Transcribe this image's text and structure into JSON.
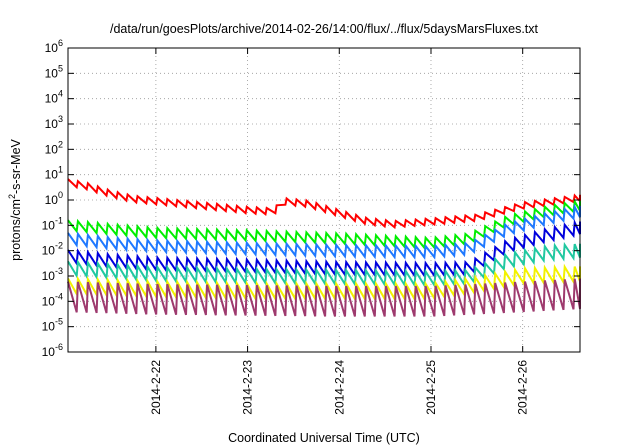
{
  "chart_data": {
    "type": "line",
    "title": "/data/run/goesPlots/archive/2014-02-26/14:00/flux/../flux/5daysMarsFluxes.txt",
    "xlabel": "Coordinated Universal Time (UTC)",
    "ylabel_parts": [
      "protons/cm",
      "2",
      "-s-sr-MeV"
    ],
    "y_scale": "log",
    "ylim": [
      1e-06,
      1000000.0
    ],
    "x_range_days": [
      "2014-02-21 01:00",
      "2014-02-26 15:00"
    ],
    "grid": true,
    "legend": "none",
    "x_ticks": [
      {
        "label": "2014-2-22",
        "date": "2014-02-22"
      },
      {
        "label": "2014-2-23",
        "date": "2014-02-23"
      },
      {
        "label": "2014-2-24",
        "date": "2014-02-24"
      },
      {
        "label": "2014-2-25",
        "date": "2014-02-25"
      },
      {
        "label": "2014-2-26",
        "date": "2014-02-26"
      }
    ],
    "y_ticks": [
      {
        "base": "10",
        "exp": "6",
        "value": 1000000.0
      },
      {
        "base": "10",
        "exp": "5",
        "value": 100000.0
      },
      {
        "base": "10",
        "exp": "4",
        "value": 10000.0
      },
      {
        "base": "10",
        "exp": "3",
        "value": 1000.0
      },
      {
        "base": "10",
        "exp": "2",
        "value": 100.0
      },
      {
        "base": "10",
        "exp": "1",
        "value": 10.0
      },
      {
        "base": "10",
        "exp": "0",
        "value": 1.0
      },
      {
        "base": "10",
        "exp": "-1",
        "value": 0.1
      },
      {
        "base": "10",
        "exp": "-2",
        "value": 0.01
      },
      {
        "base": "10",
        "exp": "-3",
        "value": 0.001
      },
      {
        "base": "10",
        "exp": "-4",
        "value": 0.0001
      },
      {
        "base": "10",
        "exp": "-5",
        "value": 1e-05
      },
      {
        "base": "10",
        "exp": "-6",
        "value": 1e-06
      }
    ],
    "series": [
      {
        "color": "#ff0000",
        "sawtooth": 0.25,
        "x": [
          "2014-02-21 01:00",
          "2014-02-21 06:00",
          "2014-02-21 12:00",
          "2014-02-21 18:00",
          "2014-02-22 00:00",
          "2014-02-22 12:00",
          "2014-02-23 00:00",
          "2014-02-23 07:00",
          "2014-02-23 09:00",
          "2014-02-23 16:00",
          "2014-02-24 00:00",
          "2014-02-24 07:00",
          "2014-02-24 14:00",
          "2014-02-25 00:00",
          "2014-02-25 12:00",
          "2014-02-26 00:00",
          "2014-02-26 15:00"
        ],
        "y": [
          5,
          3.5,
          1.8,
          1.1,
          0.9,
          0.6,
          0.4,
          0.35,
          0.9,
          0.7,
          0.3,
          0.15,
          0.11,
          0.14,
          0.2,
          0.6,
          1.2
        ]
      },
      {
        "color": "#00ee00",
        "sawtooth": 0.4,
        "x": [
          "2014-02-21 01:00",
          "2014-02-21 12:00",
          "2014-02-22 00:00",
          "2014-02-23 00:00",
          "2014-02-24 00:00",
          "2014-02-25 00:00",
          "2014-02-25 10:00",
          "2014-02-25 20:00",
          "2014-02-26 06:00",
          "2014-02-26 15:00"
        ],
        "y": [
          0.1,
          0.07,
          0.05,
          0.04,
          0.03,
          0.02,
          0.03,
          0.15,
          0.35,
          0.6
        ]
      },
      {
        "color": "#1e78ff",
        "sawtooth": 0.45,
        "x": [
          "2014-02-21 01:00",
          "2014-02-21 12:00",
          "2014-02-22 00:00",
          "2014-02-23 00:00",
          "2014-02-24 00:00",
          "2014-02-25 00:00",
          "2014-02-25 10:00",
          "2014-02-25 20:00",
          "2014-02-26 06:00",
          "2014-02-26 15:00"
        ],
        "y": [
          0.03,
          0.02,
          0.015,
          0.012,
          0.01,
          0.009,
          0.012,
          0.07,
          0.18,
          0.35
        ]
      },
      {
        "color": "#0000dd",
        "sawtooth": 0.5,
        "x": [
          "2014-02-21 01:00",
          "2014-02-21 12:00",
          "2014-02-22 00:00",
          "2014-02-23 00:00",
          "2014-02-24 00:00",
          "2014-02-25 00:00",
          "2014-02-25 10:00",
          "2014-02-25 20:00",
          "2014-02-26 06:00",
          "2014-02-26 15:00"
        ],
        "y": [
          0.006,
          0.004,
          0.003,
          0.0025,
          0.002,
          0.0018,
          0.002,
          0.015,
          0.04,
          0.08
        ]
      },
      {
        "color": "#20c8a0",
        "sawtooth": 0.55,
        "x": [
          "2014-02-21 01:00",
          "2014-02-22 00:00",
          "2014-02-23 00:00",
          "2014-02-24 00:00",
          "2014-02-25 00:00",
          "2014-02-25 10:00",
          "2014-02-25 20:00",
          "2014-02-26 06:00",
          "2014-02-26 15:00"
        ],
        "y": [
          0.002,
          0.0012,
          0.001,
          0.0009,
          0.0008,
          0.0009,
          0.004,
          0.008,
          0.01
        ]
      },
      {
        "color": "#f2f200",
        "sawtooth": 0.6,
        "x": [
          "2014-02-21 01:00",
          "2014-02-22 00:00",
          "2014-02-23 00:00",
          "2014-02-24 00:00",
          "2014-02-25 00:00",
          "2014-02-25 10:00",
          "2014-02-26 00:00",
          "2014-02-26 15:00"
        ],
        "y": [
          0.0004,
          0.0003,
          0.00025,
          0.00025,
          0.00025,
          0.0004,
          0.001,
          0.0012
        ]
      },
      {
        "color": "#9e3a6e",
        "sawtooth": 1.2,
        "x": [
          "2014-02-21 01:00",
          "2014-02-22 00:00",
          "2014-02-23 00:00",
          "2014-02-24 00:00",
          "2014-02-25 00:00",
          "2014-02-26 00:00",
          "2014-02-26 15:00"
        ],
        "y": [
          0.00015,
          0.00012,
          0.00011,
          0.0001,
          0.0001,
          0.00015,
          0.0002
        ]
      }
    ]
  }
}
